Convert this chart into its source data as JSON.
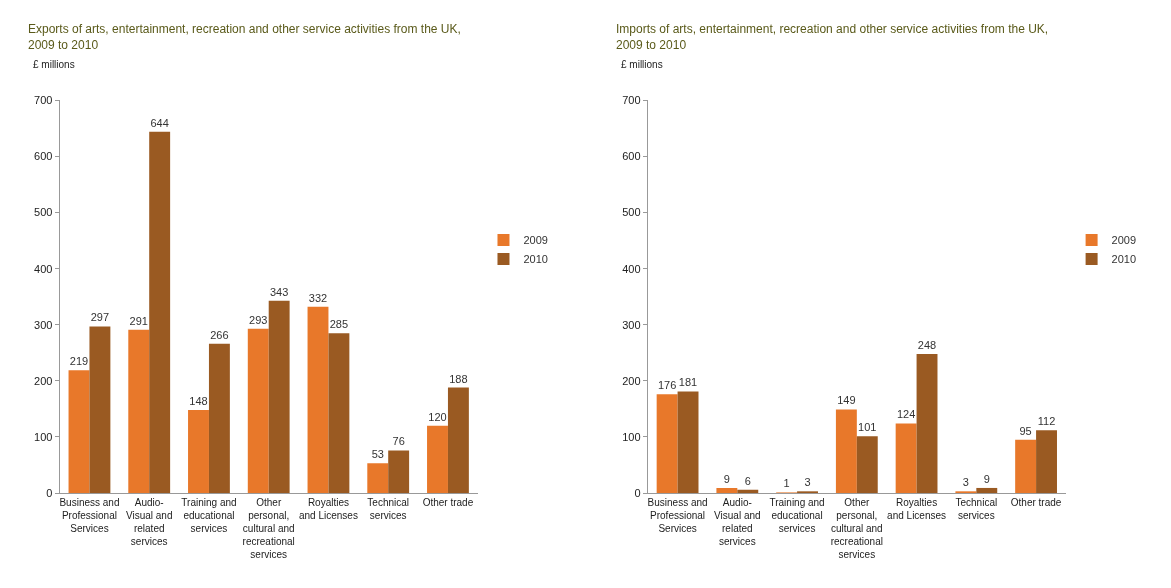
{
  "chart_data": [
    {
      "type": "bar",
      "title": "Exports of arts, entertainment, recreation and other service activities from the UK, 2009 to 2010",
      "ylabel": "£ millions",
      "categories": [
        "Business and Professional Services",
        "Audio- Visual and related services",
        "Training and educational services",
        "Other personal, cultural and recreational services",
        "Royalties and Licenses",
        "Technical services",
        "Other trade"
      ],
      "series": [
        {
          "name": "2009",
          "color": "#e8782a",
          "values": [
            219,
            291,
            148,
            293,
            332,
            53,
            120
          ]
        },
        {
          "name": "2010",
          "color": "#9a5a22",
          "values": [
            297,
            644,
            266,
            343,
            285,
            76,
            188
          ]
        }
      ],
      "ylim": [
        0,
        700
      ],
      "yticks": [
        0,
        100,
        200,
        300,
        400,
        500,
        600,
        700
      ],
      "data_labels": true,
      "legend": "right",
      "grid": false
    },
    {
      "type": "bar",
      "title": "Imports of arts, entertainment, recreation and other service activities from the UK, 2009 to 2010",
      "ylabel": "£ millions",
      "categories": [
        "Business and Professional Services",
        "Audio- Visual and related services",
        "Training and educational services",
        "Other personal, cultural and recreational services",
        "Royalties and Licenses",
        "Technical services",
        "Other trade"
      ],
      "series": [
        {
          "name": "2009",
          "color": "#e8782a",
          "values": [
            176,
            9,
            1,
            149,
            124,
            3,
            95
          ]
        },
        {
          "name": "2010",
          "color": "#9a5a22",
          "values": [
            181,
            6,
            3,
            101,
            248,
            9,
            112
          ]
        }
      ],
      "ylim": [
        0,
        700
      ],
      "yticks": [
        0,
        100,
        200,
        300,
        400,
        500,
        600,
        700
      ],
      "data_labels": true,
      "legend": "right",
      "grid": false
    }
  ]
}
